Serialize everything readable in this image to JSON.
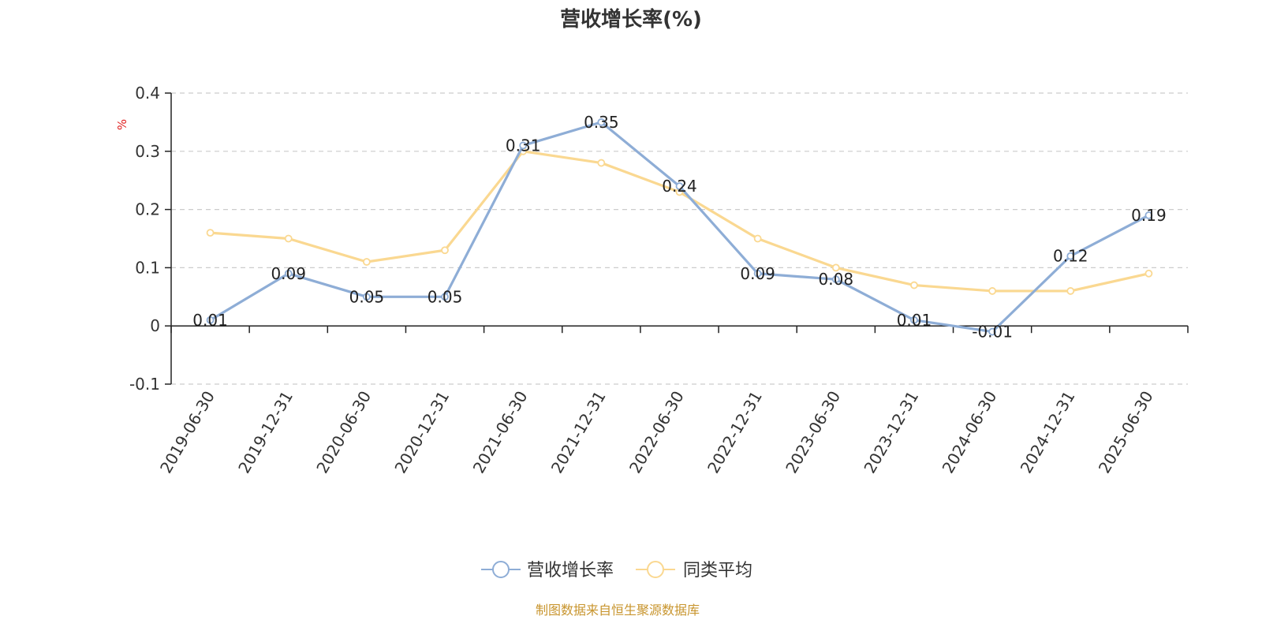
{
  "chart_data": {
    "type": "line",
    "title": "营收增长率(%)",
    "ylabel": "%",
    "xlabel": "",
    "x": [
      "2019-06-30",
      "2019-12-31",
      "2020-06-30",
      "2020-12-31",
      "2021-06-30",
      "2021-12-31",
      "2022-06-30",
      "2022-12-31",
      "2023-06-30",
      "2023-12-31",
      "2024-06-30",
      "2024-12-31",
      "2025-06-30"
    ],
    "ylim": [
      -0.1,
      0.4
    ],
    "yticks": [
      -0.1,
      0,
      0.1,
      0.2,
      0.3,
      0.4
    ],
    "ytick_labels": [
      "-0.1",
      "0",
      "0.1",
      "0.2",
      "0.3",
      "0.4"
    ],
    "grid": true,
    "legend_position": "bottom-center",
    "series": [
      {
        "name": "营收增长率",
        "color": "#8eadd6",
        "values": [
          0.01,
          0.09,
          0.05,
          0.05,
          0.31,
          0.35,
          0.24,
          0.09,
          0.08,
          0.01,
          -0.01,
          0.12,
          0.19
        ],
        "labels": [
          "0.01",
          "0.09",
          "0.05",
          "0.05",
          "0.31",
          "0.35",
          "0.24",
          "0.09",
          "0.08",
          "0.01",
          "-0.01",
          "0.12",
          "0.19"
        ],
        "show_labels": true
      },
      {
        "name": "同类平均",
        "color": "#fad891",
        "values": [
          0.16,
          0.15,
          0.11,
          0.13,
          0.3,
          0.28,
          0.23,
          0.15,
          0.1,
          0.07,
          0.06,
          0.06,
          0.09
        ],
        "show_labels": false
      }
    ],
    "unit_color": "#e02020",
    "footer": "制图数据来自恒生聚源数据库",
    "footer_color": "#c8952e",
    "axis_color": "#222222",
    "grid_color": "#cccccc"
  }
}
